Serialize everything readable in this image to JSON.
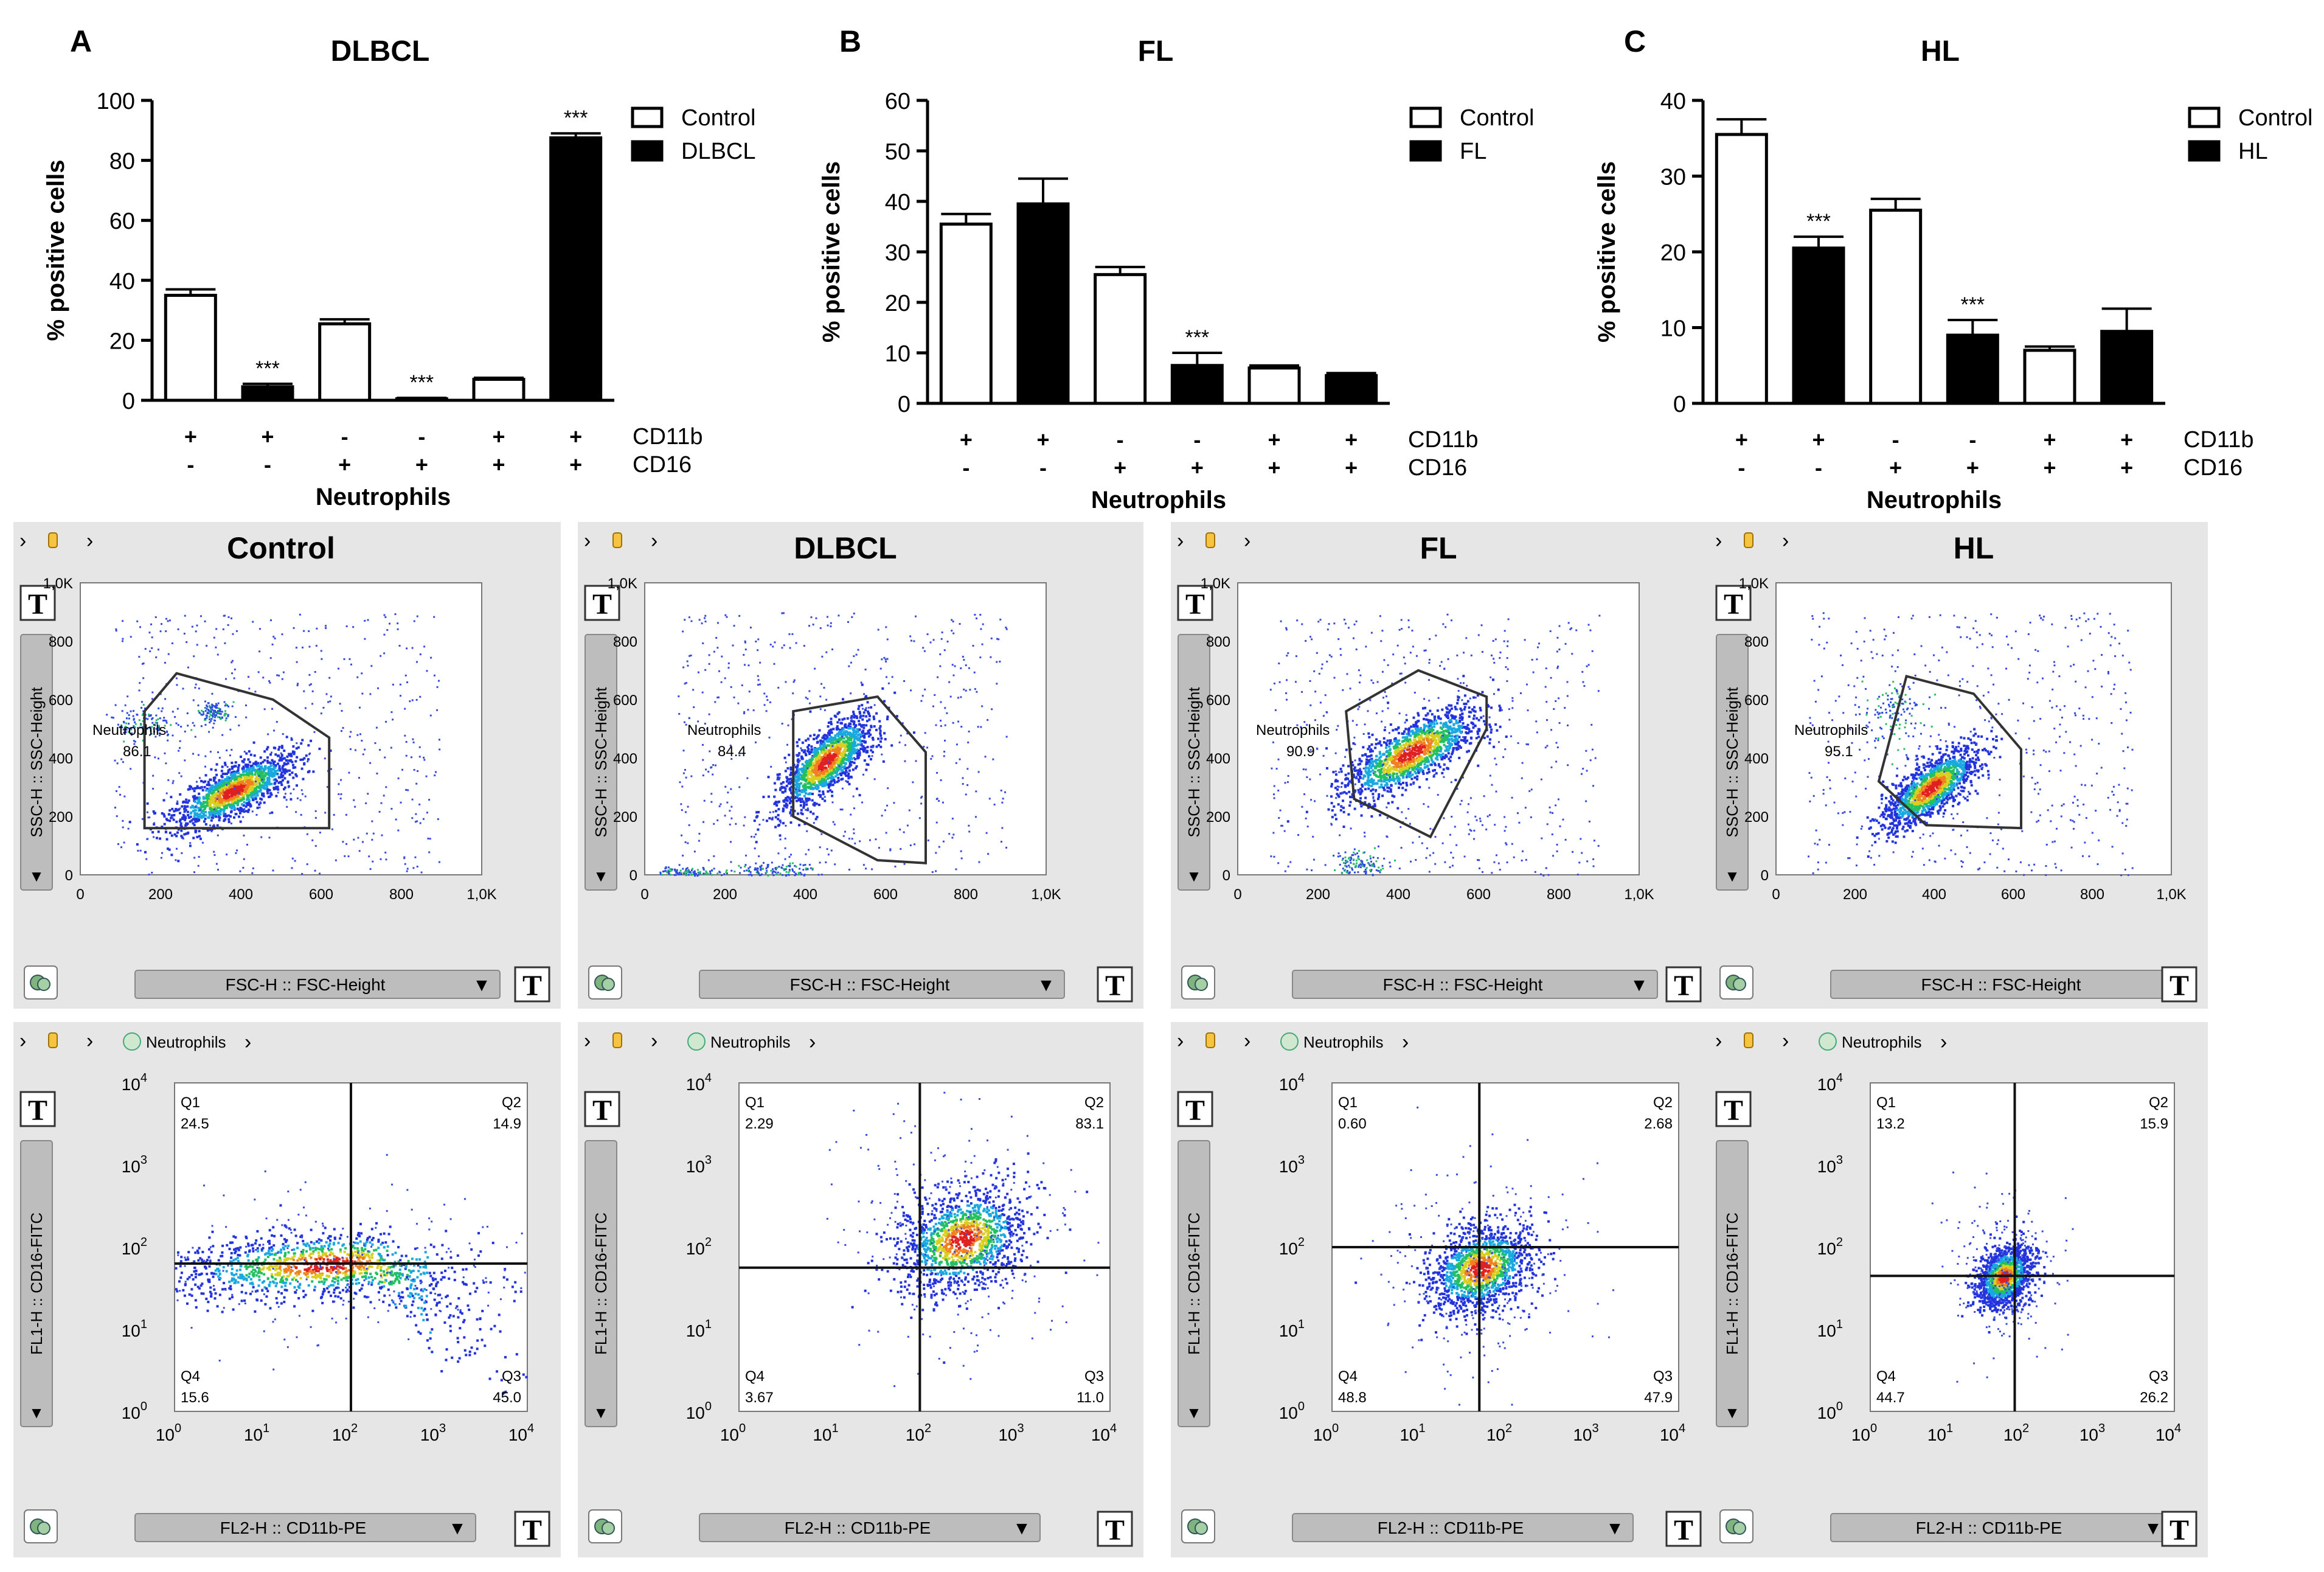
{
  "bar_charts": [
    {
      "letter": "A",
      "chart_data": {
        "type": "bar",
        "title": "DLBCL",
        "ylabel": "% positive cells",
        "xlabel": "Neutrophils",
        "ylim": [
          0,
          100
        ],
        "yticks": [
          "0",
          "20",
          "40",
          "60",
          "80",
          "100"
        ],
        "series": [
          {
            "name": "Control",
            "fill": "#ffffff",
            "values": [
              35,
              null,
              25.5,
              null,
              7,
              null
            ],
            "errors": [
              2,
              null,
              1.5,
              null,
              0.5,
              null
            ]
          },
          {
            "name": "DLBCL",
            "fill": "#000000",
            "values": [
              null,
              4.5,
              null,
              0.5,
              null,
              87.5
            ],
            "errors": [
              null,
              1,
              null,
              0.3,
              null,
              1.5
            ]
          }
        ],
        "annotations": [
          "",
          "***",
          "",
          "***",
          "",
          "***"
        ],
        "cd11b": [
          "+",
          "+",
          "-",
          "-",
          "+",
          "+"
        ],
        "cd16": [
          "-",
          "-",
          "+",
          "+",
          "+",
          "+"
        ],
        "row_labels": [
          "CD11b",
          "CD16"
        ]
      }
    },
    {
      "letter": "B",
      "chart_data": {
        "type": "bar",
        "title": "FL",
        "ylabel": "% positive cells",
        "xlabel": "Neutrophils",
        "ylim": [
          0,
          60
        ],
        "yticks": [
          "0",
          "10",
          "20",
          "30",
          "40",
          "50",
          "60"
        ],
        "series": [
          {
            "name": "Control",
            "fill": "#ffffff",
            "values": [
              35.5,
              null,
              25.5,
              null,
              7,
              null
            ],
            "errors": [
              2,
              null,
              1.5,
              null,
              0.5,
              null
            ]
          },
          {
            "name": "FL",
            "fill": "#000000",
            "values": [
              null,
              39.5,
              null,
              7.5,
              null,
              5.5
            ],
            "errors": [
              null,
              5,
              null,
              2.5,
              null,
              0.5
            ]
          }
        ],
        "annotations": [
          "",
          "",
          "",
          "***",
          "",
          ""
        ],
        "cd11b": [
          "+",
          "+",
          "-",
          "-",
          "+",
          "+"
        ],
        "cd16": [
          "-",
          "-",
          "+",
          "+",
          "+",
          "+"
        ],
        "row_labels": [
          "CD11b",
          "CD16"
        ]
      }
    },
    {
      "letter": "C",
      "chart_data": {
        "type": "bar",
        "title": "HL",
        "ylabel": "% positive cells",
        "xlabel": "Neutrophils",
        "ylim": [
          0,
          40
        ],
        "yticks": [
          "0",
          "10",
          "20",
          "30",
          "40"
        ],
        "series": [
          {
            "name": "Control",
            "fill": "#ffffff",
            "values": [
              35.5,
              null,
              25.5,
              null,
              7,
              null
            ],
            "errors": [
              2,
              null,
              1.5,
              null,
              0.5,
              null
            ]
          },
          {
            "name": "HL",
            "fill": "#000000",
            "values": [
              null,
              20.5,
              null,
              9,
              null,
              9.5
            ],
            "errors": [
              null,
              1.5,
              null,
              2,
              null,
              3
            ]
          }
        ],
        "annotations": [
          "",
          "***",
          "",
          "***",
          "",
          ""
        ],
        "cd11b": [
          "+",
          "+",
          "-",
          "-",
          "+",
          "+"
        ],
        "cd16": [
          "-",
          "-",
          "+",
          "+",
          "+",
          "+"
        ],
        "row_labels": [
          "CD11b",
          "CD16"
        ]
      }
    }
  ],
  "scatter_panels": [
    {
      "title": "Control",
      "gate_label": "Neutrophils",
      "gate_value": "86.1"
    },
    {
      "title": "DLBCL",
      "gate_label": "Neutrophils",
      "gate_value": "84.4"
    },
    {
      "title": "FL",
      "gate_label": "Neutrophils",
      "gate_value": "90.9"
    },
    {
      "title": "HL",
      "gate_label": "Neutrophils",
      "gate_value": "95.1"
    }
  ],
  "scatter_axes": {
    "ylabel": "SSC-H :: SSC-Height",
    "xlabel": "FSC-H :: FSC-Height",
    "ticks": [
      "0",
      "200",
      "400",
      "600",
      "800",
      "1,0K"
    ]
  },
  "quadrant_panels": [
    {
      "breadcrumb": "Neutrophils",
      "q1": "24.5",
      "q2": "14.9",
      "q3": "45.0",
      "q4": "15.6"
    },
    {
      "breadcrumb": "Neutrophils",
      "q1": "2.29",
      "q2": "83.1",
      "q3": "11.0",
      "q4": "3.67"
    },
    {
      "breadcrumb": "Neutrophils",
      "q1": "0.60",
      "q2": "2.68",
      "q3": "47.9",
      "q4": "48.8"
    },
    {
      "breadcrumb": "Neutrophils",
      "q1": "13.2",
      "q2": "15.9",
      "q3": "26.2",
      "q4": "44.7"
    }
  ],
  "quadrant_axes": {
    "ylabel": "FL1-H :: CD16-FITC",
    "xlabel": "FL2-H :: CD11b-PE",
    "quadrant_names": [
      "Q1",
      "Q2",
      "Q3",
      "Q4"
    ],
    "decade_exponents": [
      "0",
      "1",
      "2",
      "3",
      "4"
    ],
    "base": "10"
  },
  "ui": {
    "text_tool": "T",
    "arrow": "›",
    "dropdown": "▼"
  }
}
